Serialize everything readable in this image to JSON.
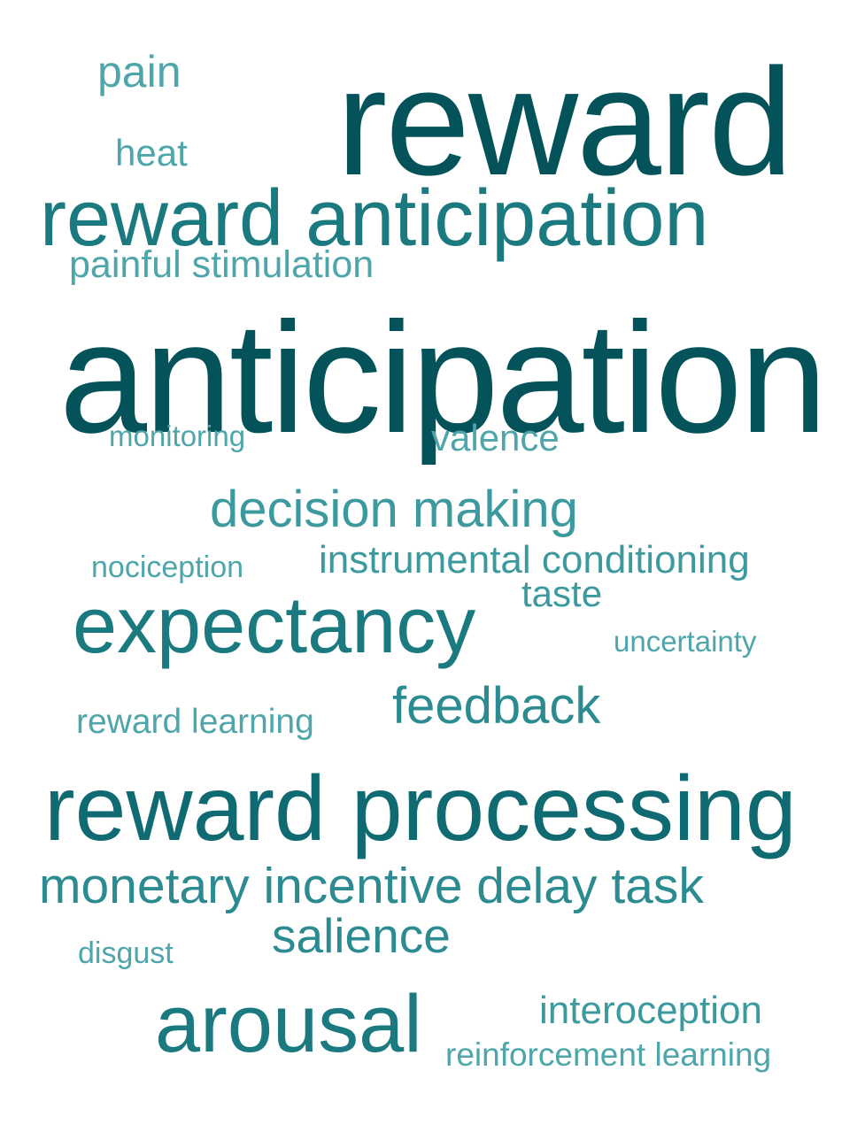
{
  "words": {
    "pain": "pain",
    "reward": "reward",
    "heat": "heat",
    "reward_anticipation": "reward anticipation",
    "painful_stimulation": "painful stimulation",
    "anticipation": "anticipation",
    "monitoring": "monitoring",
    "valence": "valence",
    "decision_making": "decision making",
    "instrumental_conditioning": "instrumental conditioning",
    "nociception": "nociception",
    "taste": "taste",
    "expectancy": "expectancy",
    "uncertainty": "uncertainty",
    "feedback": "feedback",
    "reward_learning": "reward learning",
    "reward_processing": "reward processing",
    "monetary_incentive_delay_task": "monetary incentive delay task",
    "salience": "salience",
    "disgust": "disgust",
    "arousal": "arousal",
    "interoception": "interoception",
    "reinforcement_learning": "reinforcement learning"
  },
  "colors": {
    "darkest": "#04535a",
    "dark": "#0f6a71",
    "medium_dark": "#1a7a80",
    "medium": "#2b8b90",
    "light": "#3c9a9e",
    "lightest": "#4ea6aa"
  }
}
